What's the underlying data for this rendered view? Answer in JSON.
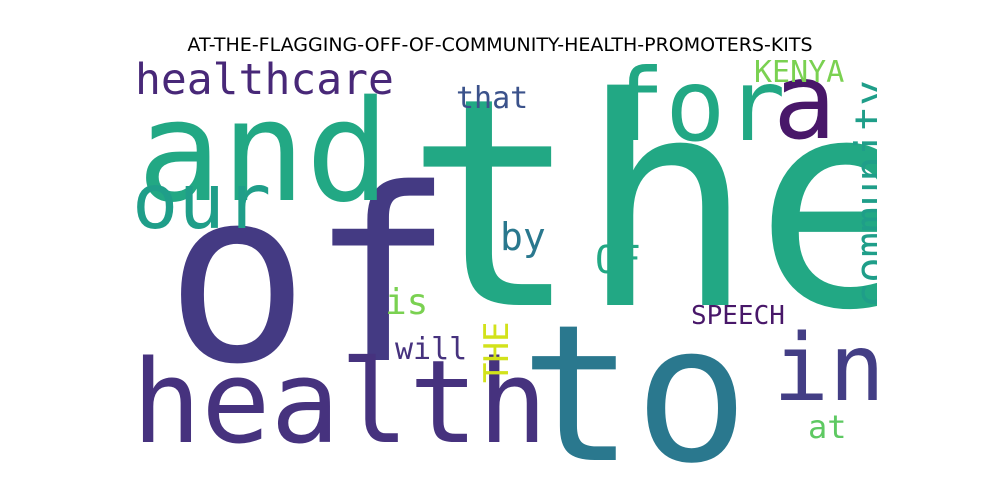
{
  "title": "AT-THE-FLAGGING-OFF-OF-COMMUNITY-HEALTH-PROMOTERS-KITS",
  "words": [
    {
      "text": "the",
      "color": "#22a884",
      "orientation": "horizontal"
    },
    {
      "text": "of",
      "color": "#443a83",
      "orientation": "horizontal"
    },
    {
      "text": "to",
      "color": "#2a788e",
      "orientation": "horizontal"
    },
    {
      "text": "and",
      "color": "#22a884",
      "orientation": "horizontal"
    },
    {
      "text": "health",
      "color": "#46327e",
      "orientation": "horizontal"
    },
    {
      "text": "for",
      "color": "#22a884",
      "orientation": "horizontal"
    },
    {
      "text": "a",
      "color": "#481769",
      "orientation": "horizontal"
    },
    {
      "text": "our",
      "color": "#1f9e89",
      "orientation": "horizontal"
    },
    {
      "text": "in",
      "color": "#433e85",
      "orientation": "horizontal"
    },
    {
      "text": "healthcare",
      "color": "#482878",
      "orientation": "horizontal"
    },
    {
      "text": "community",
      "color": "#1f9e89",
      "orientation": "vertical"
    },
    {
      "text": "by",
      "color": "#2a788e",
      "orientation": "horizontal"
    },
    {
      "text": "OF",
      "color": "#22a884",
      "orientation": "horizontal"
    },
    {
      "text": "that",
      "color": "#3b528b",
      "orientation": "horizontal"
    },
    {
      "text": "KENYA",
      "color": "#7ad151",
      "orientation": "horizontal"
    },
    {
      "text": "is",
      "color": "#7ad151",
      "orientation": "horizontal"
    },
    {
      "text": "THE",
      "color": "#d2e21b",
      "orientation": "vertical"
    },
    {
      "text": "will",
      "color": "#46327e",
      "orientation": "horizontal"
    },
    {
      "text": "SPEECH",
      "color": "#481769",
      "orientation": "horizontal"
    },
    {
      "text": "at",
      "color": "#5ec962",
      "orientation": "horizontal"
    }
  ]
}
